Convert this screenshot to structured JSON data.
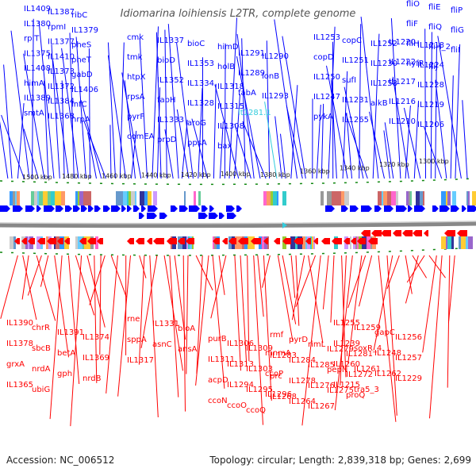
{
  "title": "Idiomarina loihiensis L2TR, complete genome",
  "accession": "Accession: NC_006512",
  "summary": "Topology: circular; Length: 2,839,318 bp; Genes: 2,699",
  "colors": {
    "forward": "#0000ff",
    "reverse": "#ff0000",
    "rna": "#33ccdd",
    "backbone": "#888888",
    "tick": "#118811"
  },
  "scale_labels": [
    "1500 kbp",
    "1480 kbp",
    "1460 kbp",
    "1440 kbp",
    "1420 kbp",
    "1400 kbp",
    "1380 kbp",
    "1360 kbp",
    "1340 kbp",
    "1320 kbp",
    "1300 kbp"
  ],
  "top_labels": [
    "IL1409",
    "IL1387",
    "ribC",
    "IL1380",
    "rpmI",
    "IL1379",
    "rplT",
    "IL1377",
    "pheS",
    "IL1375",
    "IL1410",
    "pheT",
    "IL1408",
    "IL1373",
    "gabD",
    "himA",
    "IL1372",
    "IL1406",
    "IL1389",
    "IL1384",
    "infC",
    "smtA",
    "IL1368",
    "hrpA",
    "cmk",
    "IL1337",
    "bioC",
    "himD",
    "tmk",
    "bioD",
    "IL1353",
    "holB",
    "htpX",
    "IL1352",
    "IL1334",
    "IL1318",
    "rpsA",
    "fabH",
    "IL1328",
    "IL1315",
    "pyrF",
    "IL1333",
    "aroG",
    "IL1308",
    "comEA",
    "prpD",
    "ppsA",
    "bax",
    "IL1291",
    "IL1290",
    "IL1289",
    "lonB",
    "fabA",
    "IL1293",
    "lt1281.1",
    "IL1253",
    "copC",
    "IL1252",
    "copD",
    "IL1251",
    "IL1230",
    "IL1250",
    "sufI",
    "IL1258",
    "IL1247",
    "IL1231",
    "alkB",
    "pykA",
    "IL1265",
    "IL1220",
    "IL1218",
    "IL1222",
    "IL1224",
    "IL1217",
    "IL1228",
    "IL1216",
    "IL1219",
    "IL1210",
    "IL1206",
    "fliO",
    "fliE",
    "fliP",
    "fliF",
    "fliQ",
    "fliG",
    "fliH",
    "fliH_2",
    "fliI",
    "hyfR",
    "fliJ"
  ],
  "bottom_labels": [
    "IL1390",
    "chrR",
    "IL1391",
    "IL1374",
    "IL1378",
    "sbcB",
    "betA",
    "IL1369",
    "grxA",
    "nrdA",
    "gph",
    "nrdB",
    "IL1365",
    "ubiG",
    "rne",
    "IL1331",
    "bioA",
    "sppA",
    "asnC",
    "ansA",
    "IL1317",
    "purB",
    "IL1306",
    "IL1309",
    "mnmA",
    "IL1311",
    "IL1313",
    "IL1303",
    "ccoP",
    "acpD",
    "IL1294",
    "IL1295",
    "IL1296",
    "ccoN",
    "ccoO",
    "ccoQ",
    "rmf",
    "pyrD",
    "rimL",
    "IL1279",
    "IL1281",
    "IL1283",
    "IL1284",
    "IL1285",
    "pepN",
    "IL1272",
    "prc",
    "IL1278",
    "IL1276",
    "IL1275",
    "proQ",
    "IL1268",
    "IL1264",
    "IL1267",
    "IL1255",
    "IL1259",
    "gapC",
    "IL1256",
    "IL1239",
    "soxR_4",
    "IL1248",
    "IL1257",
    "IL1260",
    "IL1261",
    "IL1262",
    "IL1229",
    "IL1215",
    "tra5_3"
  ]
}
